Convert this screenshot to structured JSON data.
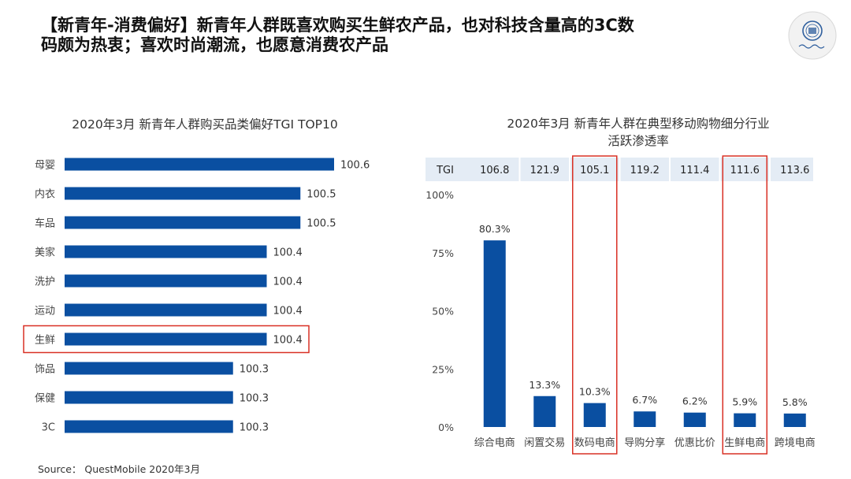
{
  "page": {
    "title_line1": "【新青年-消费偏好】新青年人群既喜欢购买生鲜农产品，也对科技含量高的3C数",
    "title_line2": "码颇为热衷；喜欢时尚潮流，也愿意消费农产品",
    "source": "Source： QuestMobile 2020年3月",
    "logo_text": "北京师范大学"
  },
  "colors": {
    "bar": "#0a4fa1",
    "highlight": "#d93025",
    "tgi_band": "#e4ecf5"
  },
  "chart_data": [
    {
      "type": "bar",
      "orientation": "horizontal",
      "title": "2020年3月 新青年人群购买品类偏好TGI TOP10",
      "categories": [
        "母婴",
        "内衣",
        "车品",
        "美家",
        "洗护",
        "运动",
        "生鲜",
        "饰品",
        "保健",
        "3C"
      ],
      "values": [
        100.6,
        100.5,
        100.5,
        100.4,
        100.4,
        100.4,
        100.4,
        100.3,
        100.3,
        100.3
      ],
      "highlighted": [
        "生鲜"
      ],
      "xlim": [
        99.8,
        100.6
      ],
      "grid": false
    },
    {
      "type": "bar",
      "orientation": "vertical",
      "title_line1": "2020年3月 新青年人群在典型移动购物细分行业",
      "title_line2": "活跃渗透率",
      "categories": [
        "综合电商",
        "闲置交易",
        "数码电商",
        "导购分享",
        "优惠比价",
        "生鲜电商",
        "跨境电商"
      ],
      "values": [
        80.3,
        13.3,
        10.3,
        6.7,
        6.2,
        5.9,
        5.8
      ],
      "value_labels": [
        "80.3%",
        "13.3%",
        "10.3%",
        "6.7%",
        "6.2%",
        "5.9%",
        "5.8%"
      ],
      "tgi_label": "TGI",
      "tgi": [
        "106.8",
        "121.9",
        "105.1",
        "119.2",
        "111.4",
        "111.6",
        "113.6"
      ],
      "y_ticks": [
        "0%",
        "25%",
        "50%",
        "75%",
        "100%"
      ],
      "ylim": [
        0,
        100
      ],
      "highlighted": [
        "数码电商",
        "生鲜电商"
      ],
      "grid": false
    }
  ]
}
